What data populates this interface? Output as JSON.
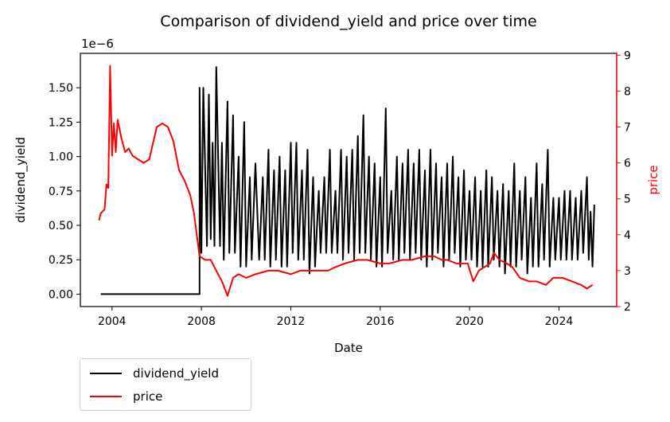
{
  "chart_data": {
    "type": "line",
    "title": "Comparison of dividend_yield and price over time",
    "xlabel": "Date",
    "x_ticks": [
      "2004",
      "2008",
      "2012",
      "2016",
      "2020",
      "2024"
    ],
    "xlim": [
      "2002-08",
      "2026-08"
    ],
    "left_axis": {
      "label": "dividend_yield",
      "offset_label": "1e−6",
      "ylim": [
        -0.09,
        1.75
      ],
      "ticks": [
        "0.00",
        "0.25",
        "0.50",
        "0.75",
        "1.00",
        "1.25",
        "1.50"
      ],
      "color": "#000000"
    },
    "right_axis": {
      "label": "price",
      "ylim": [
        2.0,
        9.05
      ],
      "ticks": [
        "2",
        "3",
        "4",
        "5",
        "6",
        "7",
        "8",
        "9"
      ],
      "color": "#ff0000"
    },
    "series": [
      {
        "name": "dividend_yield",
        "axis": "left",
        "color": "#000000",
        "points": [
          [
            "2003-07",
            0
          ],
          [
            "2005-01",
            0
          ],
          [
            "2007-01",
            0
          ],
          [
            "2007-12",
            0
          ],
          [
            "2007-12",
            1.5
          ],
          [
            "2008-01",
            0.3
          ],
          [
            "2008-02",
            1.5
          ],
          [
            "2008-04",
            0.35
          ],
          [
            "2008-05",
            1.45
          ],
          [
            "2008-06",
            0.4
          ],
          [
            "2008-07",
            1.1
          ],
          [
            "2008-08",
            0.35
          ],
          [
            "2008-09",
            1.65
          ],
          [
            "2008-11",
            0.35
          ],
          [
            "2008-12",
            1.1
          ],
          [
            "2009-01",
            0.25
          ],
          [
            "2009-03",
            1.4
          ],
          [
            "2009-04",
            0.3
          ],
          [
            "2009-06",
            1.3
          ],
          [
            "2009-07",
            0.3
          ],
          [
            "2009-09",
            1.0
          ],
          [
            "2009-10",
            0.2
          ],
          [
            "2009-12",
            1.25
          ],
          [
            "2010-01",
            0.2
          ],
          [
            "2010-03",
            0.85
          ],
          [
            "2010-04",
            0.25
          ],
          [
            "2010-06",
            0.95
          ],
          [
            "2010-08",
            0.25
          ],
          [
            "2010-10",
            0.85
          ],
          [
            "2010-11",
            0.25
          ],
          [
            "2011-01",
            1.05
          ],
          [
            "2011-02",
            0.2
          ],
          [
            "2011-04",
            0.9
          ],
          [
            "2011-05",
            0.25
          ],
          [
            "2011-07",
            1.0
          ],
          [
            "2011-08",
            0.2
          ],
          [
            "2011-10",
            0.9
          ],
          [
            "2011-11",
            0.2
          ],
          [
            "2012-01",
            1.1
          ],
          [
            "2012-02",
            0.3
          ],
          [
            "2012-04",
            1.1
          ],
          [
            "2012-05",
            0.25
          ],
          [
            "2012-07",
            0.9
          ],
          [
            "2012-08",
            0.25
          ],
          [
            "2012-10",
            1.05
          ],
          [
            "2012-11",
            0.15
          ],
          [
            "2013-01",
            0.85
          ],
          [
            "2013-02",
            0.2
          ],
          [
            "2013-04",
            0.75
          ],
          [
            "2013-05",
            0.3
          ],
          [
            "2013-07",
            0.85
          ],
          [
            "2013-08",
            0.3
          ],
          [
            "2013-10",
            1.05
          ],
          [
            "2013-11",
            0.3
          ],
          [
            "2014-01",
            0.75
          ],
          [
            "2014-02",
            0.3
          ],
          [
            "2014-04",
            1.05
          ],
          [
            "2014-05",
            0.25
          ],
          [
            "2014-07",
            1.0
          ],
          [
            "2014-08",
            0.3
          ],
          [
            "2014-10",
            1.05
          ],
          [
            "2014-11",
            0.25
          ],
          [
            "2015-01",
            1.15
          ],
          [
            "2015-02",
            0.3
          ],
          [
            "2015-04",
            1.3
          ],
          [
            "2015-05",
            0.3
          ],
          [
            "2015-07",
            1.0
          ],
          [
            "2015-08",
            0.25
          ],
          [
            "2015-10",
            0.95
          ],
          [
            "2015-11",
            0.2
          ],
          [
            "2016-01",
            0.85
          ],
          [
            "2016-02",
            0.2
          ],
          [
            "2016-04",
            1.35
          ],
          [
            "2016-05",
            0.3
          ],
          [
            "2016-07",
            0.75
          ],
          [
            "2016-08",
            0.25
          ],
          [
            "2016-10",
            1.0
          ],
          [
            "2016-11",
            0.25
          ],
          [
            "2017-01",
            0.95
          ],
          [
            "2017-02",
            0.3
          ],
          [
            "2017-04",
            1.05
          ],
          [
            "2017-05",
            0.25
          ],
          [
            "2017-07",
            0.95
          ],
          [
            "2017-08",
            0.3
          ],
          [
            "2017-10",
            1.05
          ],
          [
            "2017-11",
            0.25
          ],
          [
            "2018-01",
            0.9
          ],
          [
            "2018-02",
            0.2
          ],
          [
            "2018-04",
            1.05
          ],
          [
            "2018-05",
            0.25
          ],
          [
            "2018-07",
            0.95
          ],
          [
            "2018-08",
            0.3
          ],
          [
            "2018-10",
            0.85
          ],
          [
            "2018-11",
            0.2
          ],
          [
            "2019-01",
            0.95
          ],
          [
            "2019-02",
            0.25
          ],
          [
            "2019-04",
            1.0
          ],
          [
            "2019-05",
            0.3
          ],
          [
            "2019-07",
            0.85
          ],
          [
            "2019-08",
            0.2
          ],
          [
            "2019-10",
            0.9
          ],
          [
            "2019-11",
            0.25
          ],
          [
            "2020-01",
            0.75
          ],
          [
            "2020-02",
            0.25
          ],
          [
            "2020-04",
            0.85
          ],
          [
            "2020-05",
            0.2
          ],
          [
            "2020-07",
            0.75
          ],
          [
            "2020-08",
            0.2
          ],
          [
            "2020-10",
            0.9
          ],
          [
            "2020-11",
            0.2
          ],
          [
            "2021-01",
            0.85
          ],
          [
            "2021-02",
            0.25
          ],
          [
            "2021-04",
            0.75
          ],
          [
            "2021-05",
            0.2
          ],
          [
            "2021-07",
            0.8
          ],
          [
            "2021-08",
            0.15
          ],
          [
            "2021-10",
            0.75
          ],
          [
            "2021-11",
            0.2
          ],
          [
            "2022-01",
            0.95
          ],
          [
            "2022-02",
            0.2
          ],
          [
            "2022-04",
            0.75
          ],
          [
            "2022-05",
            0.25
          ],
          [
            "2022-07",
            0.85
          ],
          [
            "2022-08",
            0.15
          ],
          [
            "2022-10",
            0.7
          ],
          [
            "2022-11",
            0.2
          ],
          [
            "2023-01",
            0.95
          ],
          [
            "2023-02",
            0.2
          ],
          [
            "2023-04",
            0.8
          ],
          [
            "2023-05",
            0.25
          ],
          [
            "2023-07",
            1.05
          ],
          [
            "2023-08",
            0.2
          ],
          [
            "2023-10",
            0.7
          ],
          [
            "2023-11",
            0.25
          ],
          [
            "2024-01",
            0.7
          ],
          [
            "2024-02",
            0.25
          ],
          [
            "2024-04",
            0.75
          ],
          [
            "2024-05",
            0.25
          ],
          [
            "2024-07",
            0.75
          ],
          [
            "2024-08",
            0.25
          ],
          [
            "2024-10",
            0.7
          ],
          [
            "2024-11",
            0.25
          ],
          [
            "2025-01",
            0.75
          ],
          [
            "2025-02",
            0.3
          ],
          [
            "2025-04",
            0.85
          ],
          [
            "2025-05",
            0.25
          ],
          [
            "2025-06",
            0.6
          ],
          [
            "2025-07",
            0.2
          ],
          [
            "2025-08",
            0.65
          ]
        ]
      },
      {
        "name": "price",
        "axis": "right",
        "color": "#ff0000",
        "points": [
          [
            "2003-06",
            4.4
          ],
          [
            "2003-07",
            4.6
          ],
          [
            "2003-09",
            4.7
          ],
          [
            "2003-10",
            5.4
          ],
          [
            "2003-11",
            5.3
          ],
          [
            "2003-12",
            8.7
          ],
          [
            "2004-01",
            6.2
          ],
          [
            "2004-02",
            7.1
          ],
          [
            "2004-03",
            6.3
          ],
          [
            "2004-04",
            7.2
          ],
          [
            "2004-06",
            6.7
          ],
          [
            "2004-08",
            6.3
          ],
          [
            "2004-10",
            6.4
          ],
          [
            "2004-12",
            6.2
          ],
          [
            "2005-03",
            6.1
          ],
          [
            "2005-06",
            6.0
          ],
          [
            "2005-09",
            6.1
          ],
          [
            "2006-01",
            7.0
          ],
          [
            "2006-04",
            7.1
          ],
          [
            "2006-07",
            7.0
          ],
          [
            "2006-10",
            6.6
          ],
          [
            "2007-01",
            5.8
          ],
          [
            "2007-04",
            5.5
          ],
          [
            "2007-07",
            5.1
          ],
          [
            "2007-09",
            4.6
          ],
          [
            "2007-11",
            3.8
          ],
          [
            "2007-12",
            3.4
          ],
          [
            "2008-03",
            3.3
          ],
          [
            "2008-06",
            3.3
          ],
          [
            "2008-09",
            3.0
          ],
          [
            "2008-12",
            2.7
          ],
          [
            "2009-03",
            2.3
          ],
          [
            "2009-06",
            2.8
          ],
          [
            "2009-09",
            2.9
          ],
          [
            "2010-01",
            2.8
          ],
          [
            "2010-06",
            2.9
          ],
          [
            "2011-01",
            3.0
          ],
          [
            "2011-06",
            3.0
          ],
          [
            "2012-01",
            2.9
          ],
          [
            "2012-06",
            3.0
          ],
          [
            "2013-01",
            3.0
          ],
          [
            "2013-06",
            3.0
          ],
          [
            "2013-09",
            3.0
          ],
          [
            "2014-01",
            3.1
          ],
          [
            "2014-06",
            3.2
          ],
          [
            "2015-01",
            3.3
          ],
          [
            "2015-06",
            3.3
          ],
          [
            "2016-01",
            3.2
          ],
          [
            "2016-06",
            3.2
          ],
          [
            "2017-01",
            3.3
          ],
          [
            "2017-06",
            3.3
          ],
          [
            "2018-01",
            3.4
          ],
          [
            "2018-06",
            3.4
          ],
          [
            "2018-10",
            3.3
          ],
          [
            "2019-01",
            3.3
          ],
          [
            "2019-06",
            3.2
          ],
          [
            "2019-12",
            3.2
          ],
          [
            "2020-03",
            2.7
          ],
          [
            "2020-06",
            3.0
          ],
          [
            "2020-09",
            3.1
          ],
          [
            "2020-12",
            3.2
          ],
          [
            "2021-02",
            3.5
          ],
          [
            "2021-05",
            3.3
          ],
          [
            "2021-09",
            3.2
          ],
          [
            "2021-12",
            3.1
          ],
          [
            "2022-04",
            2.8
          ],
          [
            "2022-09",
            2.7
          ],
          [
            "2023-01",
            2.7
          ],
          [
            "2023-06",
            2.6
          ],
          [
            "2023-10",
            2.8
          ],
          [
            "2024-03",
            2.8
          ],
          [
            "2024-08",
            2.7
          ],
          [
            "2025-01",
            2.6
          ],
          [
            "2025-04",
            2.5
          ],
          [
            "2025-07",
            2.6
          ]
        ]
      }
    ],
    "legend": {
      "placement": "below-left"
    },
    "grid": false
  }
}
